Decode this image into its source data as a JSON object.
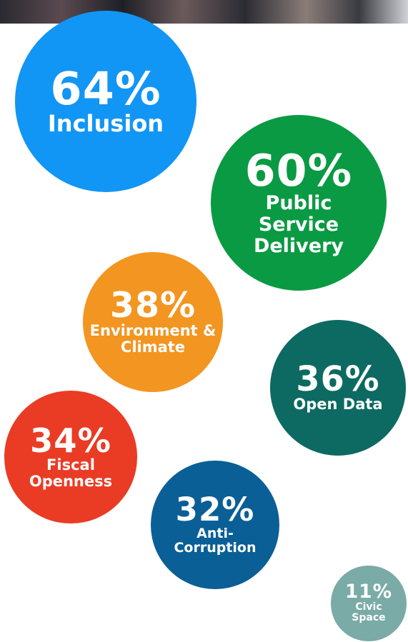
{
  "chart_data": {
    "type": "bubble",
    "categories": [
      "Inclusion",
      "Public Service Delivery",
      "Environment & Climate",
      "Open Data",
      "Fiscal Openness",
      "Anti-Corruption",
      "Civic Space"
    ],
    "values": [
      64,
      60,
      38,
      36,
      34,
      32,
      11
    ],
    "value_labels": [
      "64%",
      "60%",
      "38%",
      "36%",
      "34%",
      "32%",
      "11%"
    ],
    "colors": [
      "#1296f5",
      "#0a9a44",
      "#f39521",
      "#0d6a62",
      "#ea3b24",
      "#0a5f96",
      "#7aaba6"
    ]
  }
}
